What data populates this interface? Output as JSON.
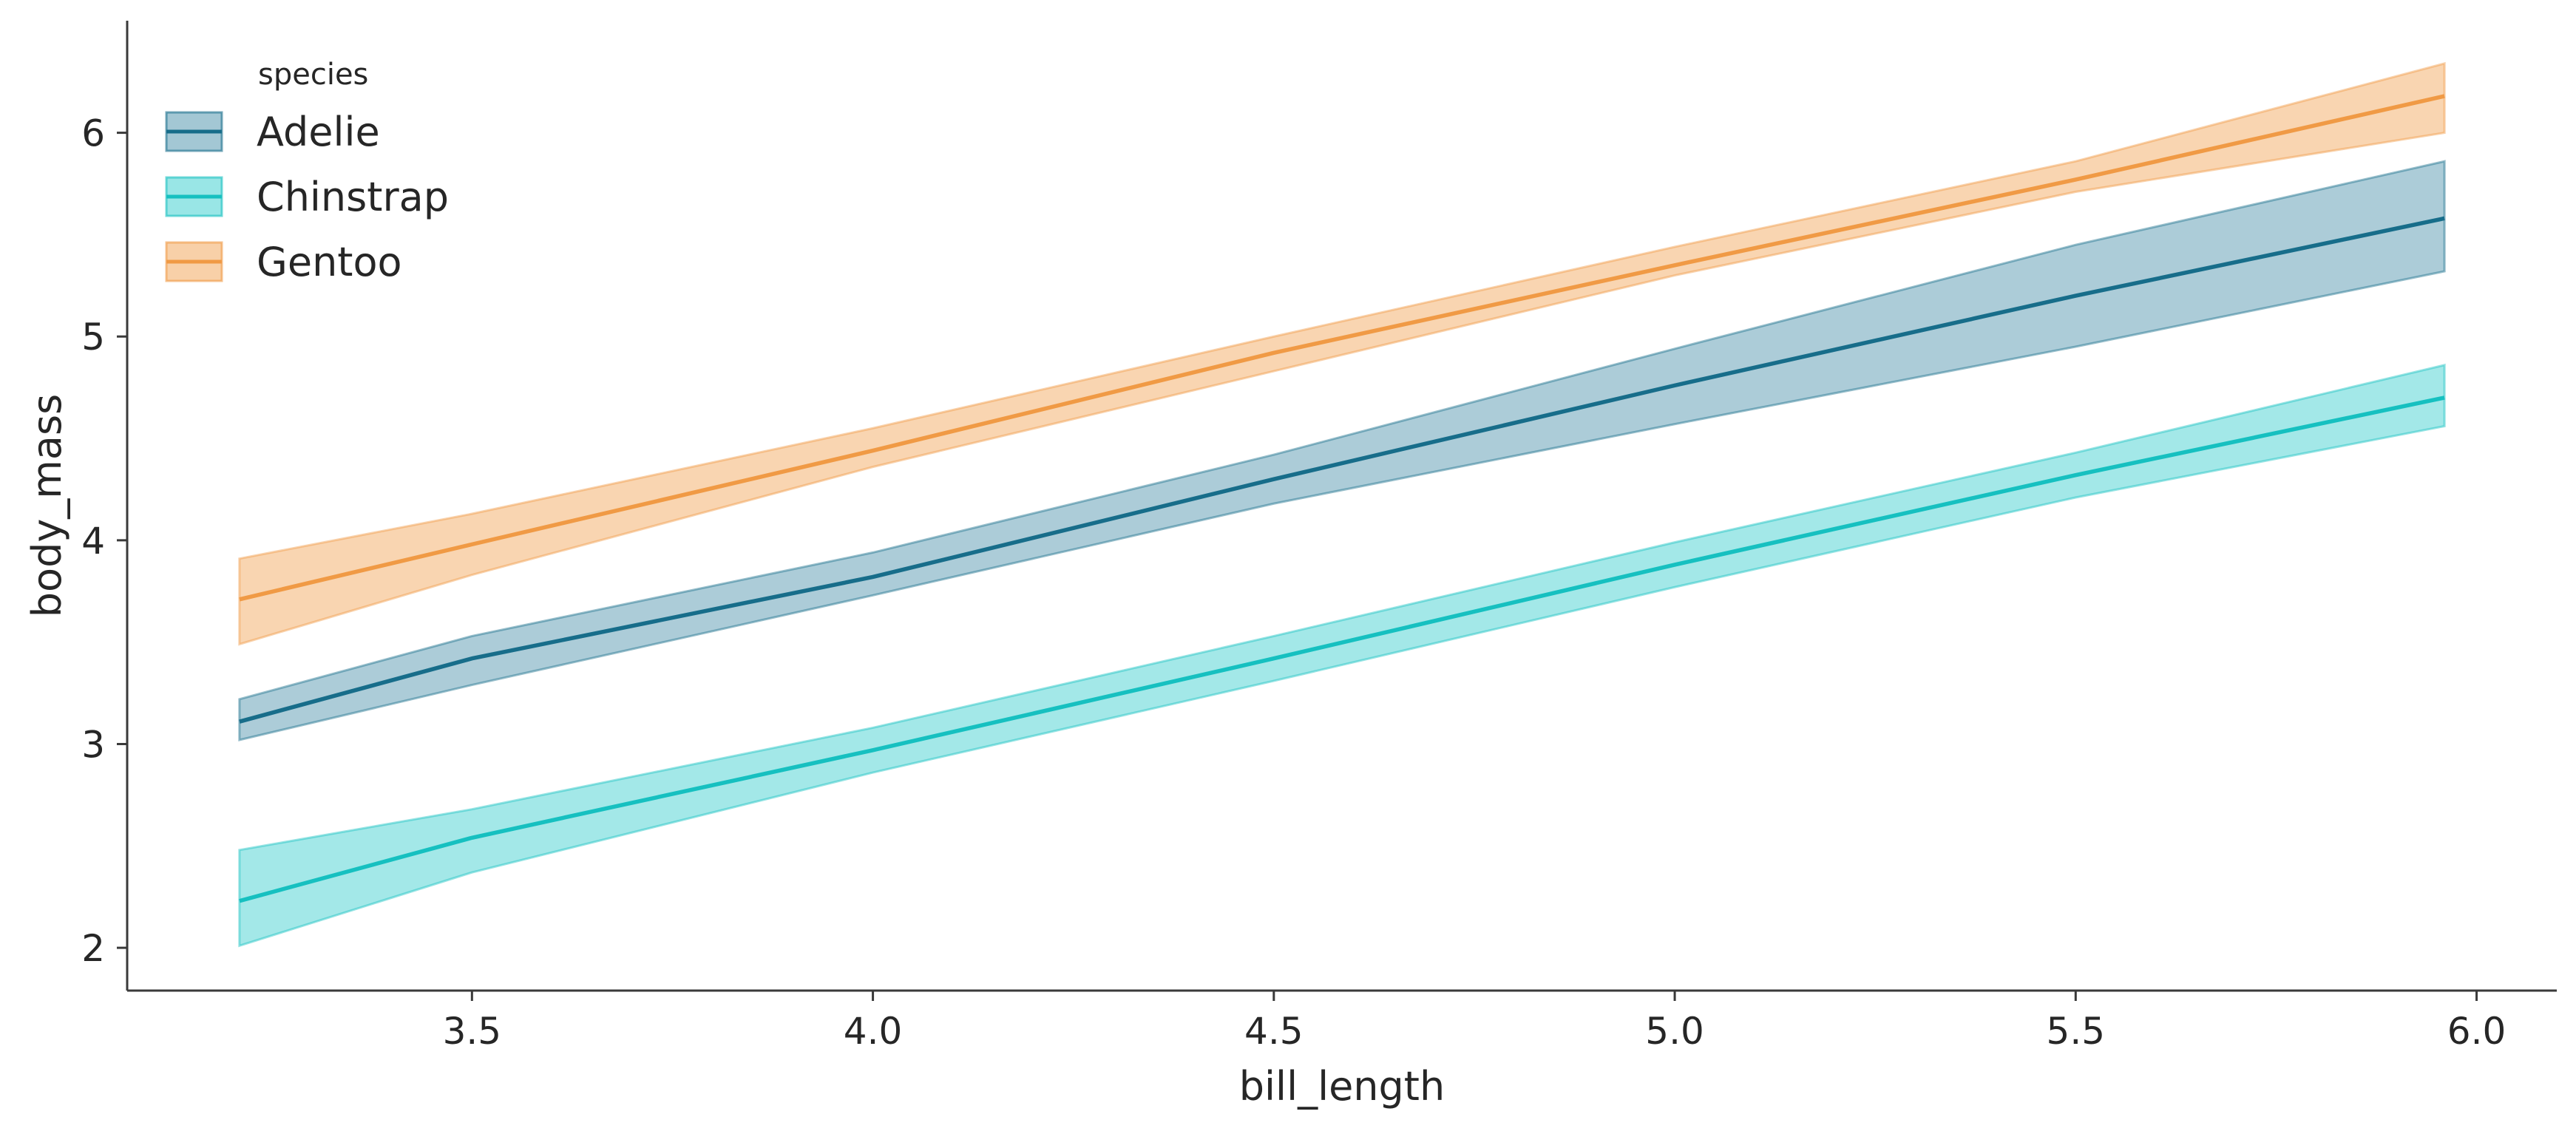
{
  "chart_data": {
    "type": "line",
    "xlabel": "bill_length",
    "ylabel": "body_mass",
    "xlim": [
      3.07,
      6.1
    ],
    "ylim": [
      1.79,
      6.55
    ],
    "x_ticks": [
      3.5,
      4.0,
      4.5,
      5.0,
      5.5,
      6.0
    ],
    "x_tick_labels": [
      "3.5",
      "4.0",
      "4.5",
      "5.0",
      "5.5",
      "6.0"
    ],
    "y_ticks": [
      2,
      3,
      4,
      5,
      6
    ],
    "y_tick_labels": [
      "2",
      "3",
      "4",
      "5",
      "6"
    ],
    "grid": false,
    "legend": {
      "title": "species",
      "placement": "top-left"
    },
    "series": [
      {
        "name": "Adelie",
        "color": "#176d8a",
        "band_color": "#a3c7d4",
        "x": [
          3.21,
          3.5,
          4.0,
          4.5,
          5.0,
          5.5,
          5.96
        ],
        "y": [
          3.11,
          3.42,
          3.82,
          4.3,
          4.76,
          5.2,
          5.58
        ],
        "lower": [
          3.02,
          3.29,
          3.73,
          4.18,
          4.57,
          4.95,
          5.32
        ],
        "upper": [
          3.22,
          3.53,
          3.94,
          4.42,
          4.94,
          5.45,
          5.86
        ]
      },
      {
        "name": "Chinstrap",
        "color": "#16c0c0",
        "band_color": "#99e6e6",
        "x": [
          3.21,
          3.5,
          4.0,
          4.5,
          5.0,
          5.5,
          5.96
        ],
        "y": [
          2.23,
          2.54,
          2.97,
          3.42,
          3.88,
          4.32,
          4.7
        ],
        "lower": [
          2.01,
          2.37,
          2.86,
          3.31,
          3.77,
          4.21,
          4.56
        ],
        "upper": [
          2.48,
          2.68,
          3.08,
          3.53,
          3.99,
          4.43,
          4.86
        ]
      },
      {
        "name": "Gentoo",
        "color": "#f09a45",
        "band_color": "#f8d0a8",
        "x": [
          3.21,
          3.5,
          4.0,
          4.5,
          5.0,
          5.5,
          5.96
        ],
        "y": [
          3.71,
          3.98,
          4.44,
          4.92,
          5.35,
          5.77,
          6.18
        ],
        "lower": [
          3.49,
          3.83,
          4.36,
          4.83,
          5.3,
          5.71,
          6.0
        ],
        "upper": [
          3.91,
          4.13,
          4.55,
          5.0,
          5.44,
          5.86,
          6.34
        ]
      }
    ]
  }
}
